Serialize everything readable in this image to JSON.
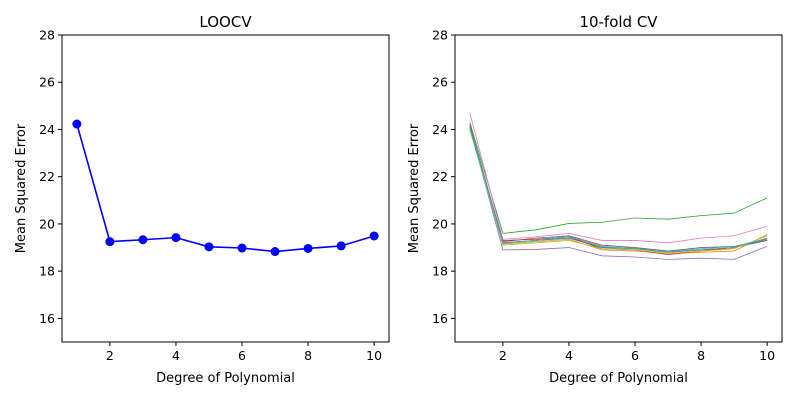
{
  "chart_data": [
    {
      "type": "line",
      "title": "LOOCV",
      "xlabel": "Degree of Polynomial",
      "ylabel": "Mean Squared Error",
      "xlim": [
        0.55,
        10.45
      ],
      "ylim": [
        15,
        28
      ],
      "xticks": [
        2,
        4,
        6,
        8,
        10
      ],
      "yticks": [
        16,
        18,
        20,
        22,
        24,
        26,
        28
      ],
      "grid": false,
      "marker": "circle",
      "series": [
        {
          "color": "#0000ff",
          "x": [
            1,
            2,
            3,
            4,
            5,
            6,
            7,
            8,
            9,
            10
          ],
          "values": [
            24.23,
            19.25,
            19.33,
            19.42,
            19.03,
            18.98,
            18.83,
            18.96,
            19.07,
            19.49
          ]
        }
      ]
    },
    {
      "type": "line",
      "title": "10-fold CV",
      "xlabel": "Degree of Polynomial",
      "ylabel": "Mean Squared Error",
      "xlim": [
        0.55,
        10.45
      ],
      "ylim": [
        15,
        28
      ],
      "xticks": [
        2,
        4,
        6,
        8,
        10
      ],
      "yticks": [
        16,
        18,
        20,
        22,
        24,
        26,
        28
      ],
      "grid": false,
      "marker": "none",
      "series": [
        {
          "color": "#1f77b4",
          "x": [
            1,
            2,
            3,
            4,
            5,
            6,
            7,
            8,
            9,
            10
          ],
          "values": [
            24.2,
            19.2,
            19.3,
            19.4,
            19.0,
            18.95,
            18.8,
            18.9,
            19.0,
            19.3
          ]
        },
        {
          "color": "#ff7f0e",
          "x": [
            1,
            2,
            3,
            4,
            5,
            6,
            7,
            8,
            9,
            10
          ],
          "values": [
            24.1,
            19.15,
            19.25,
            19.35,
            18.9,
            18.85,
            18.75,
            18.8,
            18.85,
            19.55
          ]
        },
        {
          "color": "#2ca02c",
          "x": [
            1,
            2,
            3,
            4,
            5,
            6,
            7,
            8,
            9,
            10
          ],
          "values": [
            24.3,
            19.6,
            19.75,
            20.02,
            20.07,
            20.25,
            20.2,
            20.35,
            20.46,
            21.1
          ]
        },
        {
          "color": "#d62728",
          "x": [
            1,
            2,
            3,
            4,
            5,
            6,
            7,
            8,
            9,
            10
          ],
          "values": [
            24.0,
            19.3,
            19.35,
            19.45,
            18.95,
            18.9,
            18.7,
            18.85,
            19.0,
            19.4
          ]
        },
        {
          "color": "#9467bd",
          "x": [
            1,
            2,
            3,
            4,
            5,
            6,
            7,
            8,
            9,
            10
          ],
          "values": [
            24.1,
            18.9,
            18.92,
            19.0,
            18.65,
            18.6,
            18.5,
            18.55,
            18.5,
            19.05
          ]
        },
        {
          "color": "#8c564b",
          "x": [
            1,
            2,
            3,
            4,
            5,
            6,
            7,
            8,
            9,
            10
          ],
          "values": [
            24.2,
            19.25,
            19.4,
            19.5,
            19.1,
            19.0,
            18.85,
            19.0,
            19.05,
            19.3
          ]
        },
        {
          "color": "#e377c2",
          "x": [
            1,
            2,
            3,
            4,
            5,
            6,
            7,
            8,
            9,
            10
          ],
          "values": [
            24.7,
            19.35,
            19.45,
            19.6,
            19.3,
            19.3,
            19.2,
            19.4,
            19.5,
            19.9
          ]
        },
        {
          "color": "#7f7f7f",
          "x": [
            1,
            2,
            3,
            4,
            5,
            6,
            7,
            8,
            9,
            10
          ],
          "values": [
            24.15,
            19.2,
            19.3,
            19.45,
            19.05,
            18.95,
            18.8,
            18.9,
            19.0,
            19.35
          ]
        },
        {
          "color": "#bcbd22",
          "x": [
            1,
            2,
            3,
            4,
            5,
            6,
            7,
            8,
            9,
            10
          ],
          "values": [
            24.0,
            19.1,
            19.2,
            19.3,
            18.95,
            18.9,
            18.75,
            18.85,
            18.95,
            19.5
          ]
        },
        {
          "color": "#17becf",
          "x": [
            1,
            2,
            3,
            4,
            5,
            6,
            7,
            8,
            9,
            10
          ],
          "values": [
            24.05,
            19.18,
            19.3,
            19.48,
            19.02,
            18.97,
            18.82,
            18.95,
            19.05,
            19.38
          ]
        }
      ]
    }
  ]
}
